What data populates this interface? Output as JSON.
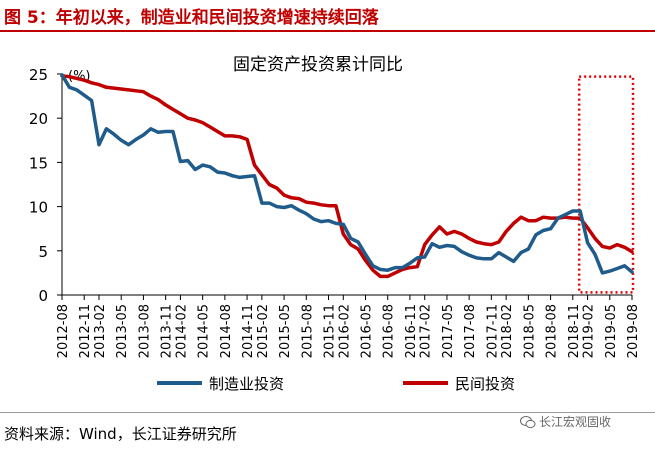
{
  "figure_title": "图 5：年初以来，制造业和民间投资增速持续回落",
  "source": "资料来源：Wind，长江证券研究所",
  "watermark": "长江宏观固收",
  "watermark_icon": "wechat-icon",
  "colors": {
    "title": "#c00000",
    "manufacturing": "#1f5c8b",
    "private": "#c00000",
    "highlight": "#e00000"
  },
  "chart_data": {
    "type": "line",
    "title": "固定资产投资累计同比",
    "unit_label": "(%)",
    "ylim": [
      0,
      25
    ],
    "yticks": [
      0,
      5,
      10,
      15,
      20,
      25
    ],
    "grid": false,
    "legend_position": "bottom",
    "highlight_box_x": [
      "2018-12",
      "2019-08"
    ],
    "x": [
      "2012-08",
      "2012-09",
      "2012-10",
      "2012-11",
      "2012-12",
      "2013-02",
      "2013-03",
      "2013-04",
      "2013-05",
      "2013-06",
      "2013-07",
      "2013-08",
      "2013-09",
      "2013-10",
      "2013-11",
      "2013-12",
      "2014-02",
      "2014-03",
      "2014-04",
      "2014-05",
      "2014-06",
      "2014-07",
      "2014-08",
      "2014-09",
      "2014-10",
      "2014-11",
      "2014-12",
      "2015-02",
      "2015-03",
      "2015-04",
      "2015-05",
      "2015-06",
      "2015-07",
      "2015-08",
      "2015-09",
      "2015-10",
      "2015-11",
      "2015-12",
      "2016-02",
      "2016-03",
      "2016-04",
      "2016-05",
      "2016-06",
      "2016-07",
      "2016-08",
      "2016-09",
      "2016-10",
      "2016-11",
      "2016-12",
      "2017-02",
      "2017-03",
      "2017-04",
      "2017-05",
      "2017-06",
      "2017-07",
      "2017-08",
      "2017-09",
      "2017-10",
      "2017-11",
      "2017-12",
      "2018-02",
      "2018-03",
      "2018-04",
      "2018-05",
      "2018-06",
      "2018-07",
      "2018-08",
      "2018-09",
      "2018-10",
      "2018-11",
      "2018-12",
      "2019-02",
      "2019-03",
      "2019-04",
      "2019-05",
      "2019-06",
      "2019-07",
      "2019-08"
    ],
    "x_tick_labels": [
      "2012-08",
      "2012-11",
      "2013-02",
      "2013-05",
      "2013-08",
      "2013-11",
      "2014-02",
      "2014-05",
      "2014-08",
      "2014-11",
      "2015-02",
      "2015-05",
      "2015-08",
      "2015-11",
      "2016-02",
      "2016-05",
      "2016-08",
      "2016-11",
      "2017-02",
      "2017-05",
      "2017-08",
      "2017-11",
      "2018-02",
      "2018-05",
      "2018-08",
      "2018-11",
      "2019-02",
      "2019-05",
      "2019-08"
    ],
    "series": [
      {
        "name": "制造业投资",
        "values": [
          24.9,
          23.5,
          23.2,
          22.6,
          22.0,
          17.0,
          18.8,
          18.2,
          17.5,
          17.0,
          17.6,
          18.1,
          18.8,
          18.4,
          18.5,
          18.5,
          15.1,
          15.2,
          14.2,
          14.7,
          14.5,
          13.9,
          13.8,
          13.5,
          13.3,
          13.4,
          13.5,
          10.4,
          10.4,
          10.0,
          9.9,
          10.1,
          9.6,
          9.2,
          8.6,
          8.3,
          8.4,
          8.1,
          8.0,
          6.4,
          6.0,
          4.6,
          3.3,
          2.9,
          2.8,
          3.1,
          3.1,
          3.6,
          4.2,
          4.3,
          5.8,
          5.4,
          5.6,
          5.5,
          4.9,
          4.5,
          4.2,
          4.1,
          4.1,
          4.8,
          4.3,
          3.8,
          4.8,
          5.2,
          6.8,
          7.3,
          7.5,
          8.7,
          9.1,
          9.5,
          9.5,
          5.9,
          4.6,
          2.5,
          2.7,
          3.0,
          3.3,
          2.6
        ]
      },
      {
        "name": "民间投资",
        "values": [
          24.8,
          24.7,
          24.5,
          24.3,
          24.0,
          23.8,
          23.5,
          23.4,
          23.3,
          23.2,
          23.1,
          23.0,
          22.5,
          22.1,
          21.5,
          21.0,
          20.5,
          20.0,
          19.8,
          19.5,
          19.0,
          18.5,
          18.0,
          18.0,
          17.9,
          17.6,
          14.7,
          13.6,
          12.5,
          12.1,
          11.3,
          11.0,
          10.9,
          10.5,
          10.4,
          10.2,
          10.1,
          10.1,
          6.9,
          5.7,
          5.2,
          3.9,
          2.8,
          2.1,
          2.1,
          2.5,
          2.9,
          3.1,
          3.2,
          5.7,
          6.8,
          7.7,
          6.9,
          7.2,
          6.9,
          6.4,
          6.0,
          5.8,
          5.7,
          6.0,
          7.2,
          8.1,
          8.8,
          8.4,
          8.4,
          8.8,
          8.7,
          8.7,
          8.8,
          8.7,
          8.7,
          7.6,
          6.4,
          5.5,
          5.3,
          5.7,
          5.4,
          4.9
        ]
      }
    ]
  }
}
